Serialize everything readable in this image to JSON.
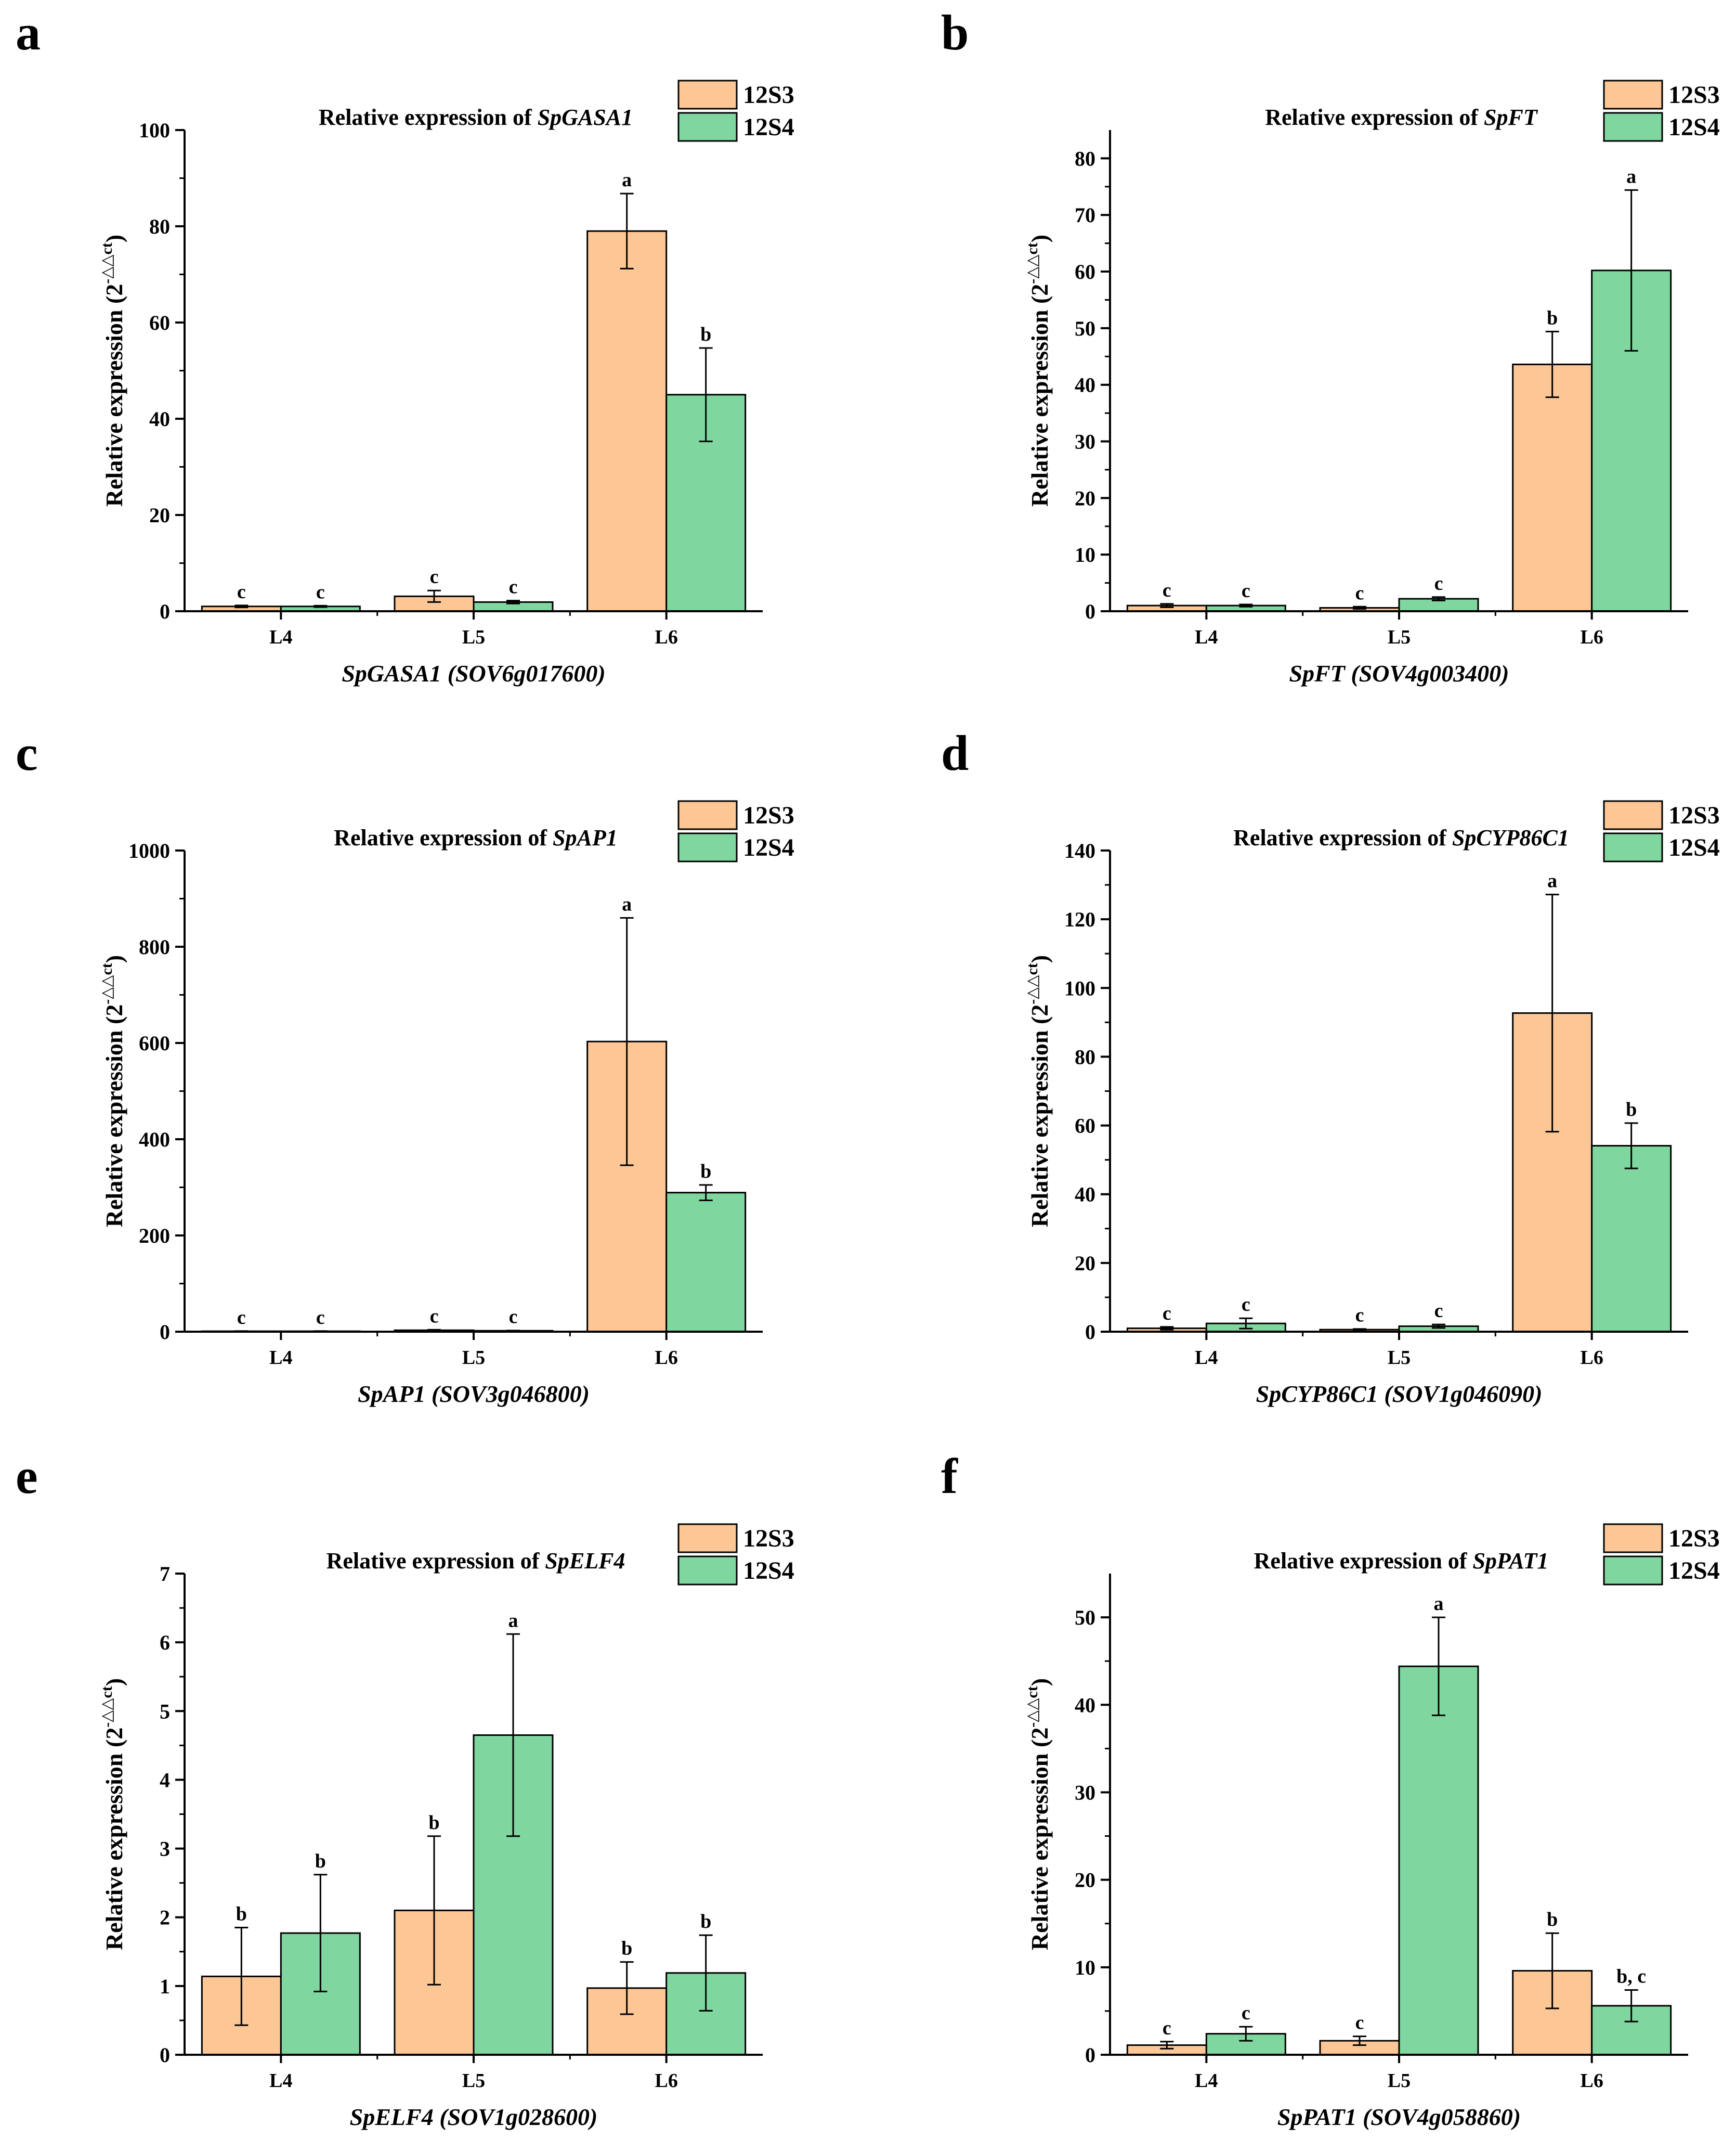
{
  "legend_labels": [
    "12S3",
    "12S4"
  ],
  "colors": {
    "s1": "#FCC695",
    "s2": "#7FD69E",
    "axis": "#000000"
  },
  "chart_data": [
    {
      "panel": "a",
      "type": "bar",
      "title_prefix": "Relative expression of ",
      "title_gene": "SpGASA1",
      "ylabel": "Relative expression (2",
      "ylabel_sup": "-△△ct",
      "ylabel_end": ")",
      "xlabel_gene": "SpGASA1",
      "xlabel_id": "(SOV6g017600)",
      "categories": [
        "L4",
        "L5",
        "L6"
      ],
      "ylim": [
        0,
        100
      ],
      "yticks": [
        0,
        20,
        40,
        60,
        80,
        100
      ],
      "series": [
        {
          "name": "12S3",
          "values": [
            1,
            3.1,
            79
          ],
          "errors": [
            0.2,
            1.2,
            7.8
          ],
          "letters": [
            "c",
            "c",
            "a"
          ]
        },
        {
          "name": "12S4",
          "values": [
            1,
            1.9,
            45
          ],
          "errors": [
            0.15,
            0.3,
            9.7
          ],
          "letters": [
            "c",
            "c",
            "b"
          ]
        }
      ]
    },
    {
      "panel": "b",
      "type": "bar",
      "title_prefix": "Relative expression of ",
      "title_gene": "SpFT",
      "ylabel": "Relative expression (2",
      "ylabel_sup": "-△△ct",
      "ylabel_end": ")",
      "xlabel_gene": "SpFT",
      "xlabel_id": "(SOV4g003400)",
      "categories": [
        "L4",
        "L5",
        "L6"
      ],
      "ylim": [
        0,
        85
      ],
      "yticks": [
        0,
        10,
        20,
        30,
        40,
        50,
        60,
        70,
        80
      ],
      "series": [
        {
          "name": "12S3",
          "values": [
            1,
            0.6,
            43.6
          ],
          "errors": [
            0.3,
            0.2,
            5.8
          ],
          "letters": [
            "c",
            "c",
            "b"
          ]
        },
        {
          "name": "12S4",
          "values": [
            1,
            2.2,
            60.2
          ],
          "errors": [
            0.2,
            0.3,
            14.2
          ],
          "letters": [
            "c",
            "c",
            "a"
          ]
        }
      ]
    },
    {
      "panel": "c",
      "type": "bar",
      "title_prefix": "Relative expression of ",
      "title_gene": "SpAP1",
      "ylabel": "Relative expression (2",
      "ylabel_sup": "-△△ct",
      "ylabel_end": ")",
      "xlabel_gene": "SpAP1",
      "xlabel_id": "(SOV3g046800)",
      "categories": [
        "L4",
        "L5",
        "L6"
      ],
      "ylim": [
        0,
        1000
      ],
      "yticks": [
        0,
        200,
        400,
        600,
        800,
        1000
      ],
      "series": [
        {
          "name": "12S3",
          "values": [
            1,
            3,
            603
          ],
          "errors": [
            0.3,
            1,
            257
          ],
          "letters": [
            "c",
            "c",
            "a"
          ]
        },
        {
          "name": "12S4",
          "values": [
            1,
            2,
            289
          ],
          "errors": [
            0.3,
            0.5,
            16
          ],
          "letters": [
            "c",
            "c",
            "b"
          ]
        }
      ]
    },
    {
      "panel": "d",
      "type": "bar",
      "title_prefix": "Relative expression of ",
      "title_gene": "SpCYP86C1",
      "ylabel": "Relative expression (2",
      "ylabel_sup": "-△△ct",
      "ylabel_end": ")",
      "xlabel_gene": "SpCYP86C1",
      "xlabel_id": "(SOV1g046090)",
      "categories": [
        "L4",
        "L5",
        "L6"
      ],
      "ylim": [
        0,
        140
      ],
      "yticks": [
        0,
        20,
        40,
        60,
        80,
        100,
        120,
        140
      ],
      "series": [
        {
          "name": "12S3",
          "values": [
            1,
            0.6,
            92.7
          ],
          "errors": [
            0.4,
            0.2,
            34.5
          ],
          "letters": [
            "c",
            "c",
            "a"
          ]
        },
        {
          "name": "12S4",
          "values": [
            2.4,
            1.6,
            54.1
          ],
          "errors": [
            1.5,
            0.5,
            6.6
          ],
          "letters": [
            "c",
            "c",
            "b"
          ]
        }
      ]
    },
    {
      "panel": "e",
      "type": "bar",
      "title_prefix": "Relative expression of ",
      "title_gene": "SpELF4",
      "ylabel": "Relative expression (2",
      "ylabel_sup": "-△△ct",
      "ylabel_end": ")",
      "xlabel_gene": "SpELF4",
      "xlabel_id": "(SOV1g028600)",
      "categories": [
        "L4",
        "L5",
        "L6"
      ],
      "ylim": [
        0,
        7
      ],
      "yticks": [
        0,
        1,
        2,
        3,
        4,
        5,
        6,
        7
      ],
      "series": [
        {
          "name": "12S3",
          "values": [
            1.14,
            2.1,
            0.97
          ],
          "errors": [
            0.71,
            1.08,
            0.38
          ],
          "letters": [
            "b",
            "b",
            "b"
          ]
        },
        {
          "name": "12S4",
          "values": [
            1.77,
            4.65,
            1.19
          ],
          "errors": [
            0.85,
            1.47,
            0.55
          ],
          "letters": [
            "b",
            "a",
            "b"
          ]
        }
      ]
    },
    {
      "panel": "f",
      "type": "bar",
      "title_prefix": "Relative expression of ",
      "title_gene": "SpPAT1",
      "ylabel": "Relative expression (2",
      "ylabel_sup": "-△△ct",
      "ylabel_end": ")",
      "xlabel_gene": "SpPAT1",
      "xlabel_id": "(SOV4g058860)",
      "categories": [
        "L4",
        "L5",
        "L6"
      ],
      "ylim": [
        0,
        55
      ],
      "yticks": [
        0,
        10,
        20,
        30,
        40,
        50
      ],
      "series": [
        {
          "name": "12S3",
          "values": [
            1.1,
            1.6,
            9.6
          ],
          "errors": [
            0.4,
            0.5,
            4.3
          ],
          "letters": [
            "c",
            "c",
            "b"
          ]
        },
        {
          "name": "12S4",
          "values": [
            2.4,
            44.4,
            5.6
          ],
          "errors": [
            0.8,
            5.6,
            1.8
          ],
          "letters": [
            "c",
            "a",
            "b, c"
          ]
        }
      ]
    }
  ]
}
